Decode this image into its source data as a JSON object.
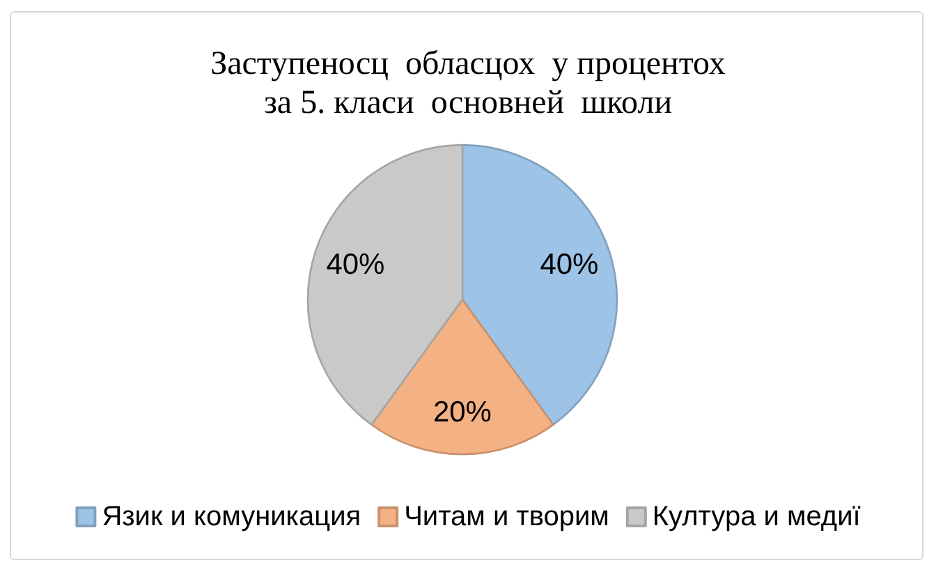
{
  "chart_data": {
    "type": "pie",
    "title": "Заступеносц  обласцох  у процентох\nза 5. класи  основней  школи",
    "categories": [
      "Язик и комуникация",
      "Читам и творим",
      "Култура и медиї"
    ],
    "values": [
      40,
      20,
      40
    ],
    "colors": [
      "#9dc3e6",
      "#f4b183",
      "#c9c9c9"
    ],
    "value_labels": [
      "40%",
      "20%",
      "40%"
    ],
    "legend": "bottom"
  }
}
